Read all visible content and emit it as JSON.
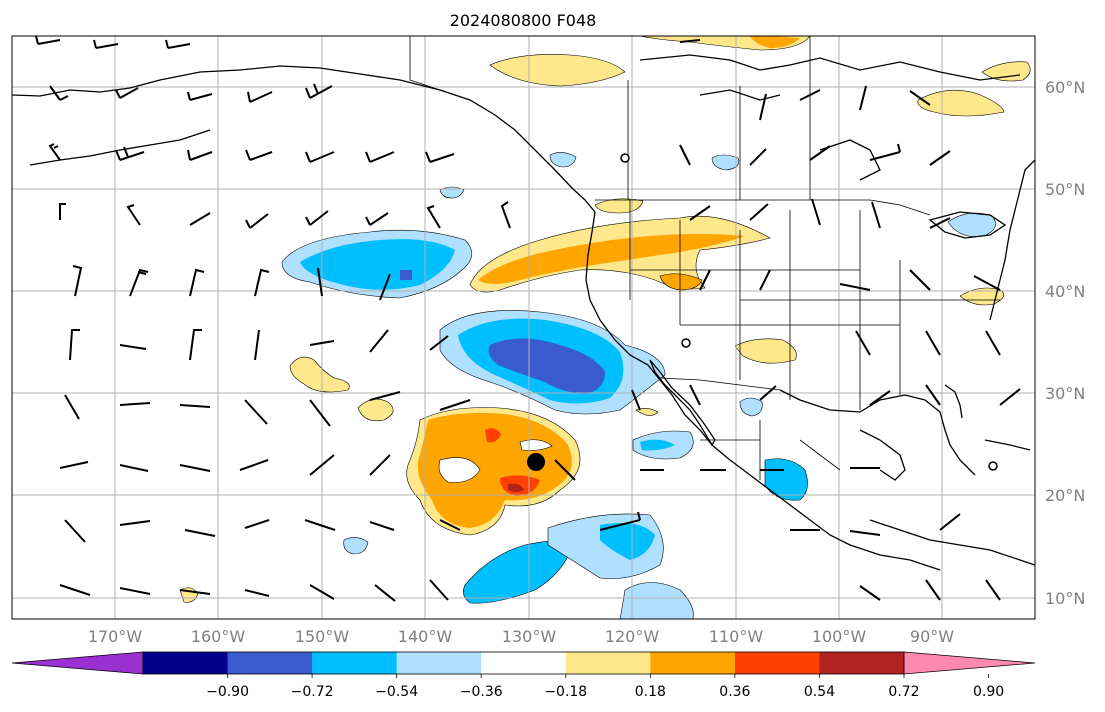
{
  "title": "2024080800 F048",
  "lon_labels": [
    "170°W",
    "160°W",
    "150°W",
    "140°W",
    "130°W",
    "120°W",
    "110°W",
    "100°W",
    "90°W"
  ],
  "lat_labels": [
    "60°N",
    "50°N",
    "40°N",
    "30°N",
    "20°N",
    "10°N"
  ],
  "colorbar": {
    "ticks": [
      "−0.90",
      "−0.72",
      "−0.54",
      "−0.36",
      "−0.18",
      "0.18",
      "0.36",
      "0.54",
      "0.72",
      "0.90"
    ],
    "colors": [
      "#9b30d0",
      "#00008b",
      "#3a5bd0",
      "#00bfff",
      "#b0e0ff",
      "#ffffff",
      "#ffe88c",
      "#ffa500",
      "#ff4000",
      "#b22222",
      "#ff88b0"
    ]
  },
  "storm_marker": "filled-circle",
  "city_markers": [
    "open-circle",
    "open-circle",
    "open-circle"
  ]
}
